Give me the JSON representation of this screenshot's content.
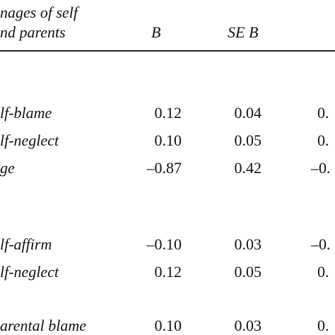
{
  "header": {
    "col0_line1": "nages of self",
    "col0_line2": "nd parents",
    "col_b": "B",
    "col_seb": "SE B"
  },
  "rows": [
    {
      "label": "lf-blame",
      "b": "0.12",
      "seb": "0.04",
      "c3": "0."
    },
    {
      "label": "lf-neglect",
      "b": "0.10",
      "seb": "0.05",
      "c3": "0."
    },
    {
      "label": "ge",
      "b": "–0.87",
      "seb": "0.42",
      "c3": "–0."
    },
    {
      "label": "lf-affirm",
      "b": "–0.10",
      "seb": "0.03",
      "c3": "–0."
    },
    {
      "label": "lf-neglect",
      "b": "0.12",
      "seb": "0.05",
      "c3": "0."
    },
    {
      "label": "arental blame",
      "b": "0.10",
      "seb": "0.03",
      "c3": "0."
    }
  ]
}
